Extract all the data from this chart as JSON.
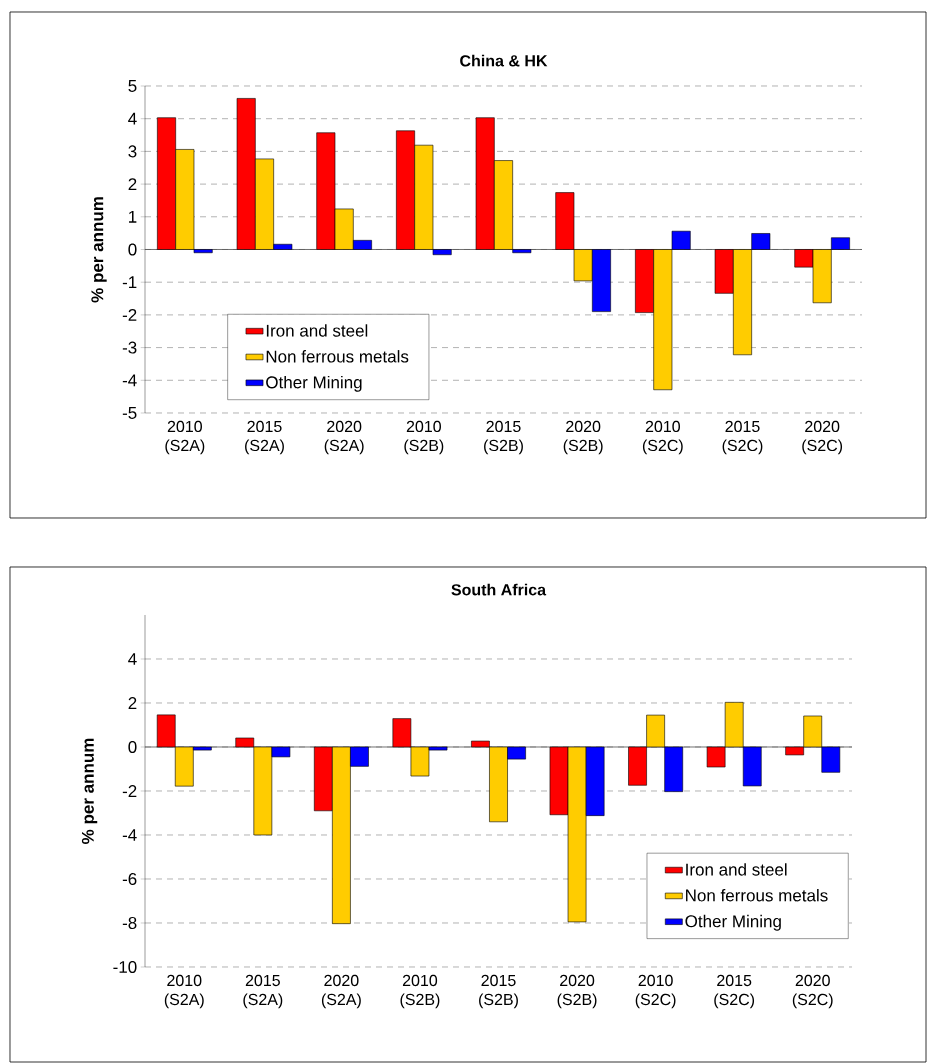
{
  "chart_data": [
    {
      "type": "bar",
      "title": "China & HK",
      "ylabel": "% per annum",
      "categories": [
        "2010 (S2A)",
        "2015 (S2A)",
        "2020 (S2A)",
        "2010 (S2B)",
        "2015 (S2B)",
        "2020 (S2B)",
        "2010 (S2C)",
        "2015 (S2C)",
        "2020 (S2C)"
      ],
      "series": [
        {
          "name": "Iron and steel",
          "color": "#ff0000",
          "values": [
            4.03,
            4.62,
            3.57,
            3.63,
            4.03,
            1.74,
            -1.93,
            -1.34,
            -0.54
          ]
        },
        {
          "name": "Non ferrous metals",
          "color": "#ffcc00",
          "values": [
            3.06,
            2.77,
            1.24,
            3.19,
            2.72,
            -0.96,
            -4.29,
            -3.22,
            -1.63
          ]
        },
        {
          "name": "Other Mining",
          "color": "#0000ff",
          "values": [
            -0.1,
            0.16,
            0.28,
            -0.16,
            -0.1,
            -1.9,
            0.56,
            0.49,
            0.36
          ]
        }
      ],
      "ylim": [
        -5,
        5
      ],
      "yticks": [
        -5,
        -4,
        -3,
        -2,
        -1,
        0,
        1,
        2,
        3,
        4,
        5
      ],
      "grid": "y",
      "legend": "bottom left"
    },
    {
      "type": "bar",
      "title": "South Africa",
      "ylabel": "% per annum",
      "categories": [
        "2010 (S2A)",
        "2015 (S2A)",
        "2020 (S2A)",
        "2010 (S2B)",
        "2015 (S2B)",
        "2020 (S2B)",
        "2010 (S2C)",
        "2015 (S2C)",
        "2020 (S2C)"
      ],
      "series": [
        {
          "name": "Iron and steel",
          "color": "#ff0000",
          "values": [
            1.46,
            0.41,
            -2.9,
            1.29,
            0.27,
            -3.08,
            -1.74,
            -0.91,
            -0.36
          ]
        },
        {
          "name": "Non ferrous metals",
          "color": "#ffcc00",
          "values": [
            -1.78,
            -4.0,
            -8.03,
            -1.32,
            -3.4,
            -7.95,
            1.45,
            2.03,
            1.41
          ]
        },
        {
          "name": "Other Mining",
          "color": "#0000ff",
          "values": [
            -0.14,
            -0.45,
            -0.88,
            -0.14,
            -0.55,
            -3.12,
            -2.03,
            -1.77,
            -1.15
          ]
        }
      ],
      "ylim": [
        -10,
        6
      ],
      "yticks": [
        -10,
        -8,
        -6,
        -4,
        -2,
        0,
        2,
        4
      ],
      "grid": "y",
      "legend": "bottom right"
    }
  ]
}
